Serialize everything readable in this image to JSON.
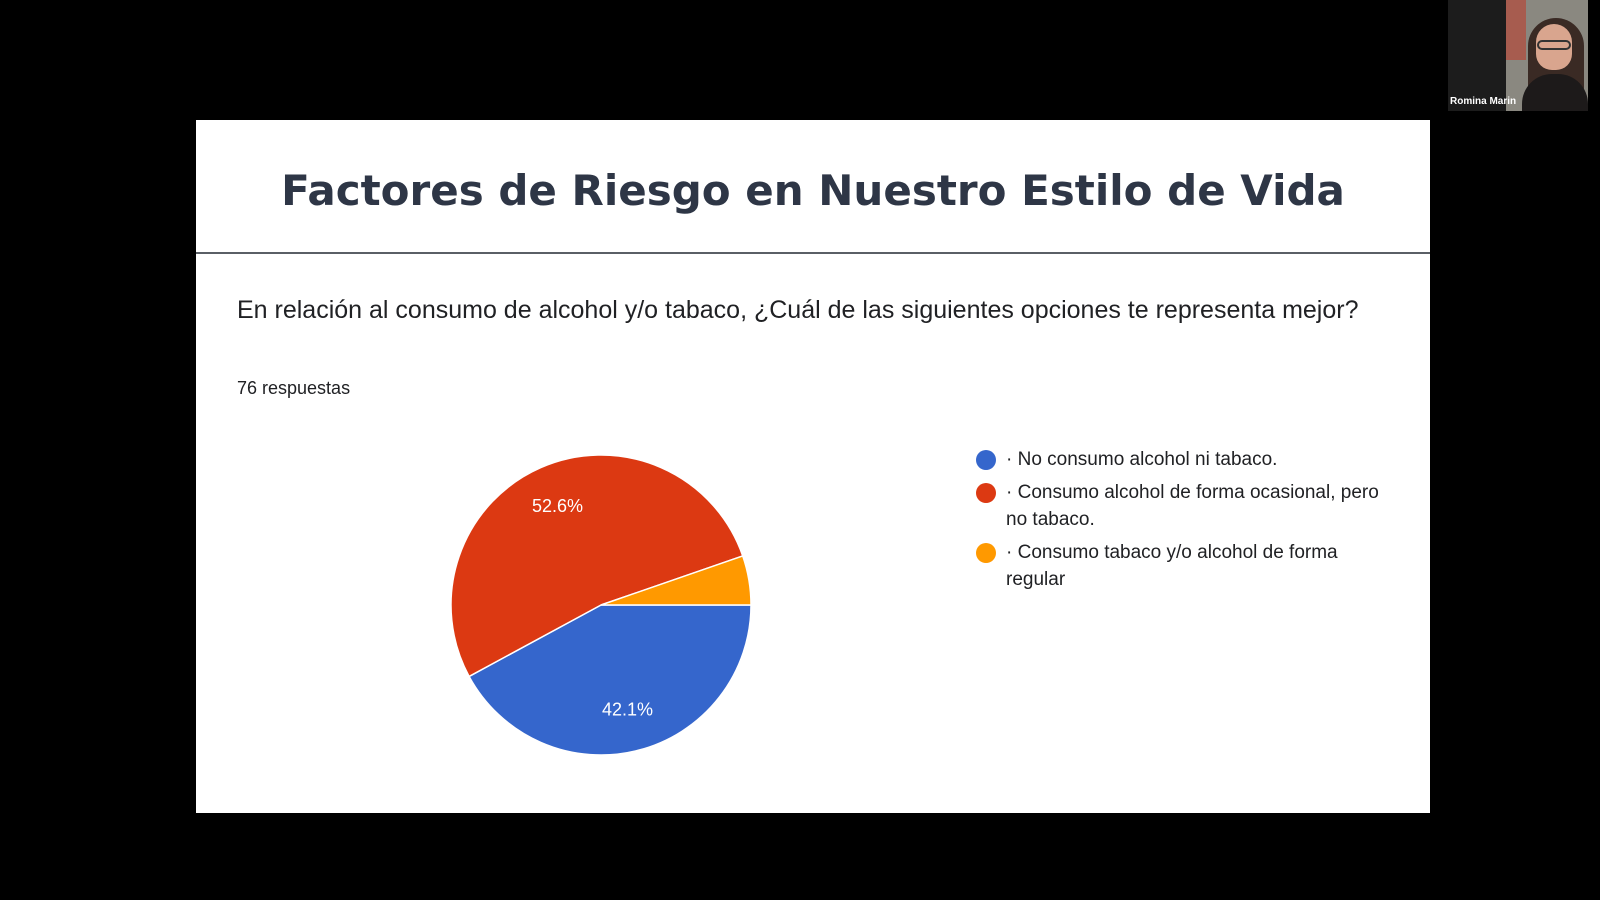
{
  "slide": {
    "title": "Factores de Riesgo en Nuestro Estilo de Vida",
    "question": "En relación al consumo de alcohol y/o tabaco, ¿Cuál de las siguientes opciones te representa mejor?",
    "responses": "76 respuestas"
  },
  "video": {
    "participant_name": "Romina Marin"
  },
  "colors": {
    "blue": "#3566cc",
    "red": "#dc3912",
    "orange": "#ff9900"
  },
  "chart_data": {
    "type": "pie",
    "series": [
      {
        "label": "· No consumo alcohol ni tabaco.",
        "value": 42.1,
        "data_label": "42.1%",
        "color": "#3566cc"
      },
      {
        "label": "· Consumo alcohol de forma ocasional, pero no tabaco.",
        "value": 52.6,
        "data_label": "52.6%",
        "color": "#dc3912"
      },
      {
        "label": "· Consumo tabaco y/o alcohol de forma regular",
        "value": 5.3,
        "data_label": "",
        "color": "#ff9900"
      }
    ],
    "legend_position": "right"
  }
}
